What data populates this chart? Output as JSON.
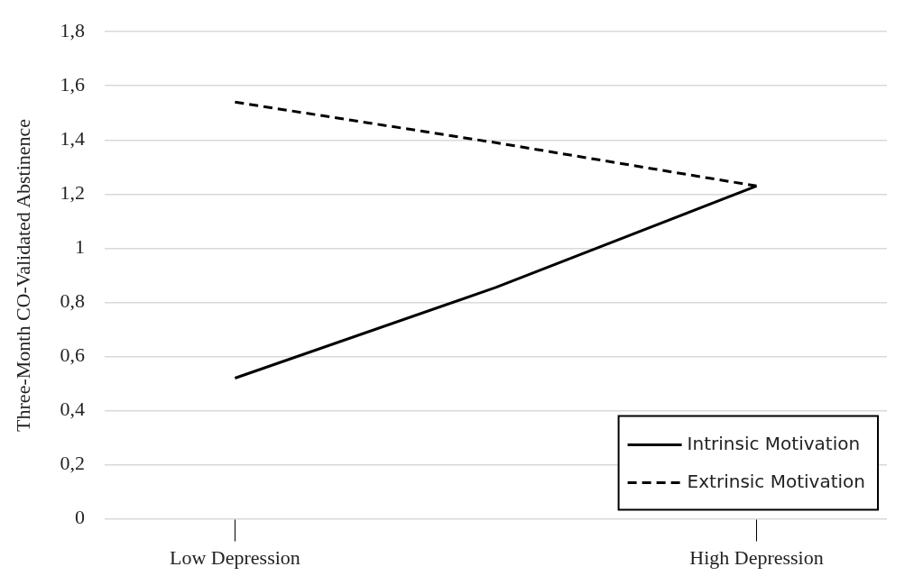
{
  "chart_data": {
    "type": "line",
    "ylabel": "Three-Month CO-Validated Abstinence",
    "categories": [
      "Low Depression",
      null,
      "High Depression"
    ],
    "series": [
      {
        "name": "Intrinsic Motivation",
        "color": "#000000",
        "values": [
          0.52,
          0.855,
          1.23
        ],
        "line_style": "solid"
      },
      {
        "name": "Extrinsic Motivation",
        "color": "#000000",
        "values": [
          1.54,
          1.39,
          1.23
        ],
        "line_style": "dashed"
      }
    ],
    "ylim": [
      0,
      1.8
    ],
    "yticks": [
      0,
      {
        "value": 0.2,
        "label": "0,2"
      },
      {
        "value": 0.4,
        "label": "0,4"
      },
      {
        "value": 0.6,
        "label": "0,6"
      },
      {
        "value": 0.8,
        "label": "0,8"
      },
      1,
      {
        "value": 1.2,
        "label": "1,2"
      },
      {
        "value": 1.4,
        "label": "1,4"
      },
      {
        "value": 1.6,
        "label": "1,6"
      },
      {
        "value": 1.8,
        "label": "1,8"
      }
    ],
    "grid": "y",
    "legend": "bottom right",
    "marker": "none"
  }
}
